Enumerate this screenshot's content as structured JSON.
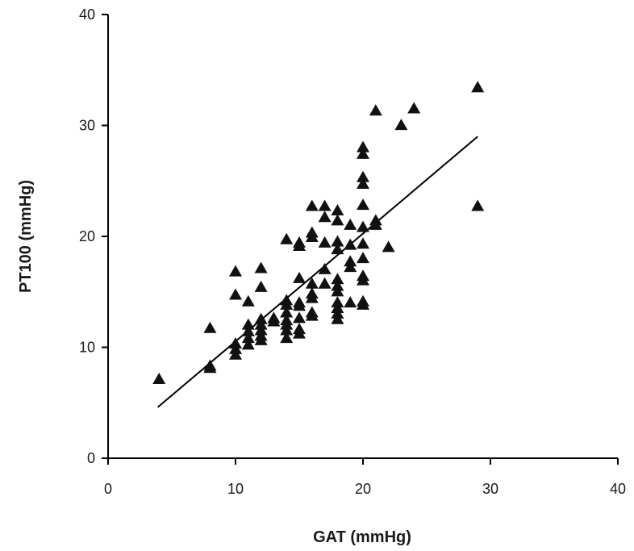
{
  "chart_data": {
    "type": "scatter",
    "xlabel": "GAT (mmHg)",
    "ylabel": "PT100 (mmHg)",
    "xlim": [
      0,
      40
    ],
    "ylim": [
      0,
      40
    ],
    "xticks": [
      0,
      10,
      20,
      30,
      40
    ],
    "yticks": [
      0,
      10,
      20,
      30,
      40
    ],
    "grid": false,
    "marker": "triangle",
    "marker_color": "#111111",
    "points": [
      [
        4,
        7.2
      ],
      [
        8,
        8.2
      ],
      [
        8,
        8.4
      ],
      [
        8,
        11.8
      ],
      [
        10,
        9.4
      ],
      [
        10,
        9.9
      ],
      [
        10,
        10.4
      ],
      [
        10,
        14.8
      ],
      [
        10,
        16.9
      ],
      [
        11,
        10.3
      ],
      [
        11,
        10.9
      ],
      [
        11,
        11.5
      ],
      [
        11,
        12.1
      ],
      [
        11,
        14.2
      ],
      [
        12,
        10.7
      ],
      [
        12,
        11.1
      ],
      [
        12,
        11.6
      ],
      [
        12,
        12.1
      ],
      [
        12,
        12.6
      ],
      [
        12,
        15.5
      ],
      [
        12,
        17.2
      ],
      [
        13,
        12.4
      ],
      [
        13,
        12.7
      ],
      [
        14,
        10.9
      ],
      [
        14,
        11.6
      ],
      [
        14,
        12.1
      ],
      [
        14,
        12.5
      ],
      [
        14,
        13.2
      ],
      [
        14,
        13.9
      ],
      [
        14,
        14.3
      ],
      [
        14,
        19.8
      ],
      [
        15,
        11.3
      ],
      [
        15,
        11.7
      ],
      [
        15,
        12.7
      ],
      [
        15,
        13.8
      ],
      [
        15,
        14.1
      ],
      [
        15,
        16.3
      ],
      [
        15,
        19.2
      ],
      [
        15,
        19.5
      ],
      [
        16,
        12.9
      ],
      [
        16,
        13.2
      ],
      [
        16,
        14.5
      ],
      [
        16,
        14.9
      ],
      [
        16,
        15.8
      ],
      [
        16,
        20.0
      ],
      [
        16,
        20.4
      ],
      [
        16,
        22.8
      ],
      [
        17,
        15.8
      ],
      [
        17,
        17.1
      ],
      [
        17,
        19.5
      ],
      [
        17,
        21.8
      ],
      [
        17,
        22.8
      ],
      [
        18,
        12.6
      ],
      [
        18,
        13.1
      ],
      [
        18,
        13.6
      ],
      [
        18,
        14.1
      ],
      [
        18,
        15.1
      ],
      [
        18,
        15.6
      ],
      [
        18,
        16.2
      ],
      [
        18,
        18.9
      ],
      [
        18,
        19.6
      ],
      [
        18,
        21.5
      ],
      [
        18,
        22.4
      ],
      [
        19,
        14.1
      ],
      [
        19,
        17.3
      ],
      [
        19,
        17.8
      ],
      [
        19,
        19.3
      ],
      [
        19,
        21.1
      ],
      [
        20,
        13.9
      ],
      [
        20,
        14.2
      ],
      [
        20,
        16.1
      ],
      [
        20,
        16.5
      ],
      [
        20,
        18.1
      ],
      [
        20,
        19.4
      ],
      [
        20,
        20.9
      ],
      [
        20,
        22.9
      ],
      [
        20,
        24.8
      ],
      [
        20,
        25.4
      ],
      [
        20,
        27.5
      ],
      [
        20,
        28.1
      ],
      [
        21,
        21.1
      ],
      [
        21,
        21.5
      ],
      [
        21,
        31.4
      ],
      [
        22,
        19.1
      ],
      [
        23,
        30.1
      ],
      [
        24,
        31.6
      ],
      [
        29,
        22.8
      ],
      [
        29,
        33.5
      ]
    ],
    "fit_line": {
      "x": [
        3.9,
        29
      ],
      "y": [
        4.6,
        29.0
      ]
    }
  }
}
